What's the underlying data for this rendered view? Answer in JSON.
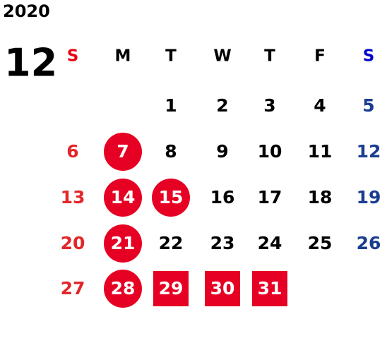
{
  "year": "2020",
  "month": "12",
  "weekdays": [
    {
      "label": "S",
      "color": "#e60012",
      "day_color": "#e2272a"
    },
    {
      "label": "M",
      "color": "#000000",
      "day_color": "#000000"
    },
    {
      "label": "T",
      "color": "#000000",
      "day_color": "#000000"
    },
    {
      "label": "W",
      "color": "#000000",
      "day_color": "#000000"
    },
    {
      "label": "T",
      "color": "#000000",
      "day_color": "#000000"
    },
    {
      "label": "F",
      "color": "#000000",
      "day_color": "#000000"
    },
    {
      "label": "S",
      "color": "#0000cc",
      "day_color": "#1a3d8f"
    }
  ],
  "highlight_color": "#e60023",
  "weeks": [
    [
      null,
      null,
      {
        "day": "1"
      },
      {
        "day": "2"
      },
      {
        "day": "3"
      },
      {
        "day": "4"
      },
      {
        "day": "5"
      }
    ],
    [
      {
        "day": "6"
      },
      {
        "day": "7",
        "style": "circle"
      },
      {
        "day": "8"
      },
      {
        "day": "9"
      },
      {
        "day": "10"
      },
      {
        "day": "11"
      },
      {
        "day": "12"
      }
    ],
    [
      {
        "day": "13"
      },
      {
        "day": "14",
        "style": "circle"
      },
      {
        "day": "15",
        "style": "circle"
      },
      {
        "day": "16"
      },
      {
        "day": "17"
      },
      {
        "day": "18"
      },
      {
        "day": "19"
      }
    ],
    [
      {
        "day": "20"
      },
      {
        "day": "21",
        "style": "circle"
      },
      {
        "day": "22"
      },
      {
        "day": "23"
      },
      {
        "day": "24"
      },
      {
        "day": "25"
      },
      {
        "day": "26"
      }
    ],
    [
      {
        "day": "27"
      },
      {
        "day": "28",
        "style": "circle"
      },
      {
        "day": "29",
        "style": "square"
      },
      {
        "day": "30",
        "style": "square"
      },
      {
        "day": "31",
        "style": "square"
      },
      null,
      null
    ]
  ]
}
